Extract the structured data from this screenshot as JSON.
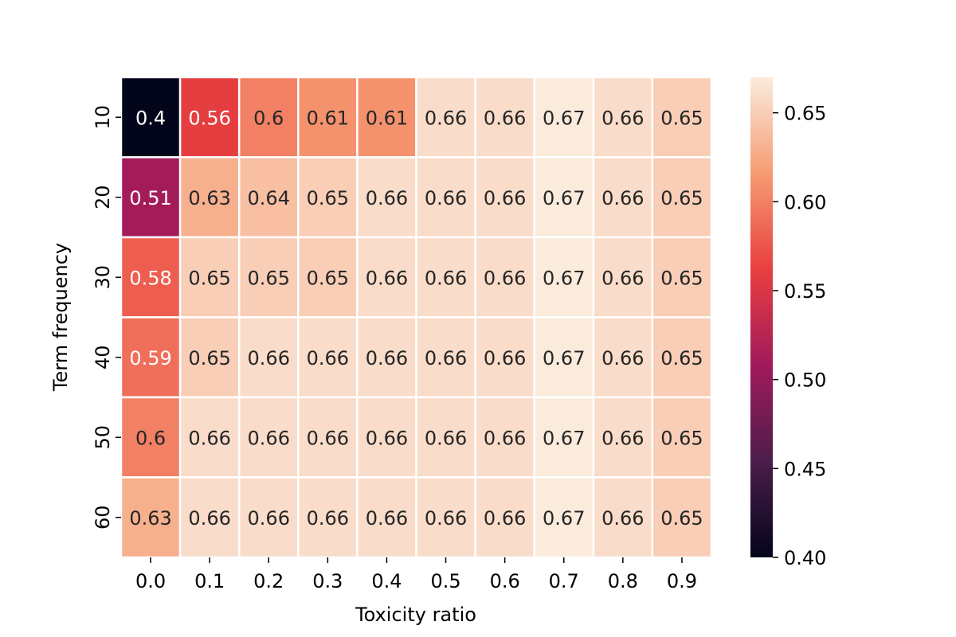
{
  "chart_data": {
    "type": "heatmap",
    "title": "",
    "xlabel": "Toxicity ratio",
    "ylabel": "Term frequency",
    "x_categories": [
      "0.0",
      "0.1",
      "0.2",
      "0.3",
      "0.4",
      "0.5",
      "0.6",
      "0.7",
      "0.8",
      "0.9"
    ],
    "y_categories": [
      "10",
      "20",
      "30",
      "40",
      "50",
      "60"
    ],
    "values": [
      [
        0.4,
        0.56,
        0.6,
        0.61,
        0.61,
        0.66,
        0.66,
        0.67,
        0.66,
        0.65
      ],
      [
        0.51,
        0.63,
        0.64,
        0.65,
        0.66,
        0.66,
        0.66,
        0.67,
        0.66,
        0.65
      ],
      [
        0.58,
        0.65,
        0.65,
        0.65,
        0.66,
        0.66,
        0.66,
        0.67,
        0.66,
        0.65
      ],
      [
        0.59,
        0.65,
        0.66,
        0.66,
        0.66,
        0.66,
        0.66,
        0.67,
        0.66,
        0.65
      ],
      [
        0.6,
        0.66,
        0.66,
        0.66,
        0.66,
        0.66,
        0.66,
        0.67,
        0.66,
        0.65
      ],
      [
        0.63,
        0.66,
        0.66,
        0.66,
        0.66,
        0.66,
        0.66,
        0.67,
        0.66,
        0.65
      ]
    ],
    "annotations": [
      [
        "0.4",
        "0.56",
        "0.6",
        "0.61",
        "0.61",
        "0.66",
        "0.66",
        "0.67",
        "0.66",
        "0.65"
      ],
      [
        "0.51",
        "0.63",
        "0.64",
        "0.65",
        "0.66",
        "0.66",
        "0.66",
        "0.67",
        "0.66",
        "0.65"
      ],
      [
        "0.58",
        "0.65",
        "0.65",
        "0.65",
        "0.66",
        "0.66",
        "0.66",
        "0.67",
        "0.66",
        "0.65"
      ],
      [
        "0.59",
        "0.65",
        "0.66",
        "0.66",
        "0.66",
        "0.66",
        "0.66",
        "0.67",
        "0.66",
        "0.65"
      ],
      [
        "0.6",
        "0.66",
        "0.66",
        "0.66",
        "0.66",
        "0.66",
        "0.66",
        "0.67",
        "0.66",
        "0.65"
      ],
      [
        "0.63",
        "0.66",
        "0.66",
        "0.66",
        "0.66",
        "0.66",
        "0.66",
        "0.67",
        "0.66",
        "0.65"
      ]
    ],
    "colorbar": {
      "range": [
        0.4,
        0.67
      ],
      "ticks": [
        "0.40",
        "0.45",
        "0.50",
        "0.55",
        "0.60",
        "0.65"
      ],
      "colormap": "rocket",
      "colors": [
        "#03051a",
        "#4c1d4b",
        "#a11a5b",
        "#e83f3f",
        "#f69c73",
        "#faebdd"
      ]
    },
    "grid": false,
    "cell_border_color": "#ffffff"
  }
}
